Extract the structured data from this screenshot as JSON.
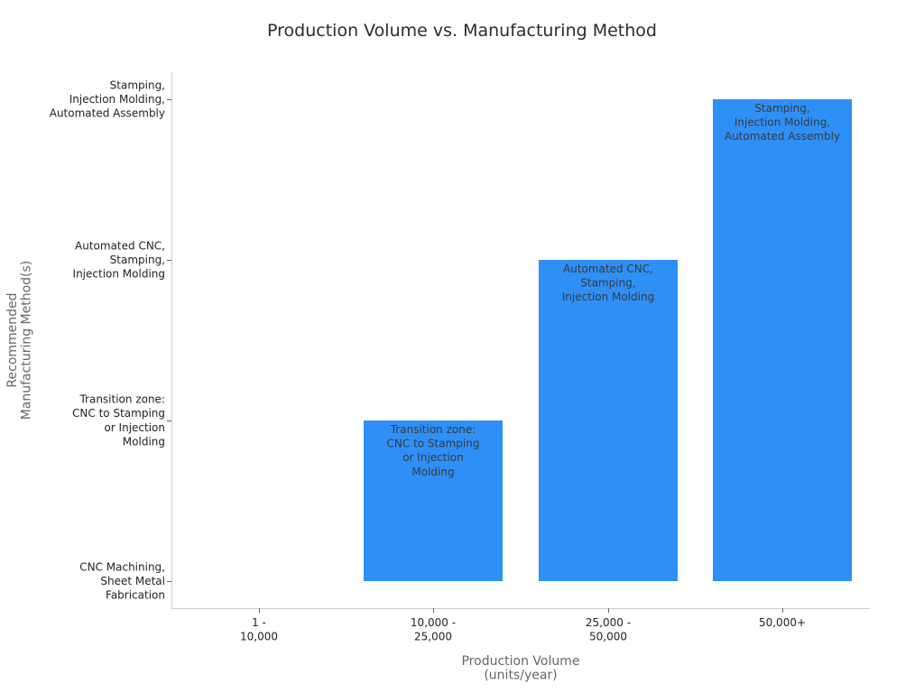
{
  "chart_data": {
    "type": "bar",
    "title": "Production Volume vs. Manufacturing Method",
    "xlabel": "Production Volume\n(units/year)",
    "ylabel": "Recommended\nManufacturing Method(s)",
    "categories": [
      "1 -\n10,000",
      "10,000 -\n25,000",
      "25,000 -\n50,000",
      "50,000+"
    ],
    "y_levels": [
      "CNC Machining,\nSheet Metal\nFabrication",
      "Transition zone:\nCNC to Stamping\nor Injection\nMolding",
      "Automated CNC,\nStamping,\nInjection Molding",
      "Stamping,\nInjection Molding,\nAutomated Assembly"
    ],
    "values": [
      0,
      1,
      2,
      3
    ],
    "bar_labels": [
      "",
      "Transition zone:\nCNC to Stamping\nor Injection\nMolding",
      "Automated CNC,\nStamping,\nInjection Molding",
      "Stamping,\nInjection Molding,\nAutomated Assembly"
    ],
    "bar_color": "#2e90f7",
    "grid": false,
    "legend": false
  }
}
